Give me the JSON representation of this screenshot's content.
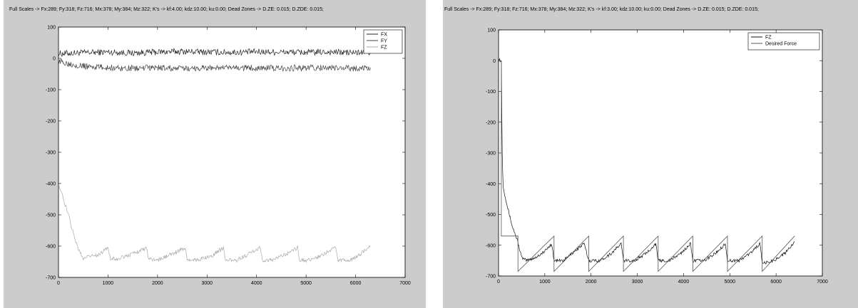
{
  "chart_data": [
    {
      "type": "line",
      "title": "Full Scales -> Fx:289; Fy:318; Fz:716; Mx:378; My:384; Mz:322; K's -> kf:4.00; kdz:10.00; ku:0.00; Dead Zones -> D.ZE: 0.015; D.ZDE: 0.015;",
      "xlabel": "",
      "ylabel": "",
      "xlim": [
        0,
        7000
      ],
      "ylim": [
        -700,
        100
      ],
      "xticks": [
        0,
        1000,
        2000,
        3000,
        4000,
        5000,
        6000,
        7000
      ],
      "yticks": [
        100,
        0,
        -100,
        -200,
        -300,
        -400,
        -500,
        -600,
        -700
      ],
      "xtick_labels": [
        "0",
        "1000",
        "2000",
        "3000",
        "4000",
        "5000",
        "6000",
        "7000"
      ],
      "ytick_labels": [
        "100",
        "0",
        "-100",
        "-200",
        "-300",
        "-400",
        "-500",
        "-600",
        "-700"
      ],
      "grid": false,
      "legend": "top-right",
      "series": [
        {
          "name": "FX",
          "color": "#222222",
          "x": [
            0,
            500,
            1000,
            1500,
            2000,
            2500,
            3000,
            3500,
            4000,
            4500,
            5000,
            5500,
            6000,
            6300
          ],
          "y": [
            15,
            18,
            20,
            17,
            20,
            22,
            20,
            19,
            21,
            20,
            19,
            20,
            18,
            20
          ]
        },
        {
          "name": "FY",
          "color": "#444444",
          "x": [
            0,
            500,
            1000,
            1500,
            2000,
            2500,
            3000,
            3500,
            4000,
            4500,
            5000,
            5500,
            6000,
            6300
          ],
          "y": [
            -10,
            -25,
            -30,
            -32,
            -30,
            -33,
            -30,
            -31,
            -30,
            -32,
            -30,
            -31,
            -32,
            -30
          ]
        },
        {
          "name": "FZ",
          "color": "#aaaaaa",
          "x": [
            0,
            100,
            200,
            300,
            400,
            500,
            600,
            800,
            1000,
            1050,
            1200,
            1500,
            1780,
            1820,
            2000,
            2300,
            2560,
            2600,
            2800,
            3100,
            3330,
            3370,
            3600,
            3850,
            4080,
            4120,
            4300,
            4600,
            4830,
            4870,
            5100,
            5350,
            5600,
            5640,
            5900,
            6100,
            6300
          ],
          "y": [
            -400,
            -450,
            -500,
            -560,
            -610,
            -640,
            -630,
            -630,
            -605,
            -640,
            -640,
            -625,
            -605,
            -640,
            -645,
            -625,
            -605,
            -645,
            -645,
            -630,
            -605,
            -645,
            -645,
            -625,
            -605,
            -645,
            -645,
            -625,
            -605,
            -645,
            -645,
            -625,
            -605,
            -645,
            -645,
            -625,
            -600
          ]
        }
      ]
    },
    {
      "type": "line",
      "title": "Full Scales -> Fx:289; Fy:318; Fz:716; Mx:378; My:384; Mz:322; K's -> kf:3.00; kdz:10.00; ku:0.00; Dead Zones -> D.ZE: 0.015; D.ZDE: 0.015;",
      "xlabel": "",
      "ylabel": "",
      "xlim": [
        0,
        7000
      ],
      "ylim": [
        -700,
        100
      ],
      "xticks": [
        0,
        1000,
        2000,
        3000,
        4000,
        5000,
        6000,
        7000
      ],
      "yticks": [
        100,
        0,
        -100,
        -200,
        -300,
        -400,
        -500,
        -600,
        -700
      ],
      "xtick_labels": [
        "0",
        "1000",
        "2000",
        "3000",
        "4000",
        "5000",
        "6000",
        "7000"
      ],
      "ytick_labels": [
        "100",
        "0",
        "-100",
        "-200",
        "-300",
        "-400",
        "-500",
        "-600",
        "-700"
      ],
      "grid": false,
      "legend": "top-right",
      "series": [
        {
          "name": "FZ",
          "color": "#111111",
          "x": [
            0,
            20,
            40,
            60,
            80,
            100,
            200,
            300,
            400,
            500,
            600,
            800,
            1000,
            1150,
            1200,
            1400,
            1600,
            1850,
            1950,
            2200,
            2450,
            2650,
            2700,
            2950,
            3200,
            3400,
            3450,
            3700,
            3950,
            4150,
            4200,
            4450,
            4700,
            4900,
            4950,
            5200,
            5450,
            5650,
            5700,
            5950,
            6200,
            6400
          ],
          "y": [
            0,
            5,
            0,
            -5,
            -300,
            -410,
            -480,
            -540,
            -580,
            -640,
            -650,
            -640,
            -620,
            -595,
            -650,
            -650,
            -625,
            -595,
            -650,
            -650,
            -625,
            -595,
            -650,
            -650,
            -625,
            -595,
            -650,
            -650,
            -625,
            -595,
            -650,
            -650,
            -625,
            -595,
            -650,
            -650,
            -625,
            -595,
            -660,
            -650,
            -625,
            -590
          ]
        },
        {
          "name": "Desired Force",
          "color": "#555555",
          "x": [
            0,
            40,
            60,
            60,
            420,
            420,
            1200,
            1200,
            1950,
            1950,
            2700,
            2700,
            3450,
            3450,
            4200,
            4200,
            4950,
            4950,
            5700,
            5700,
            6400
          ],
          "y": [
            0,
            0,
            0,
            -570,
            -570,
            -685,
            -570,
            -685,
            -570,
            -685,
            -570,
            -685,
            -570,
            -685,
            -570,
            -685,
            -570,
            -685,
            -570,
            -685,
            -570
          ]
        }
      ]
    }
  ]
}
